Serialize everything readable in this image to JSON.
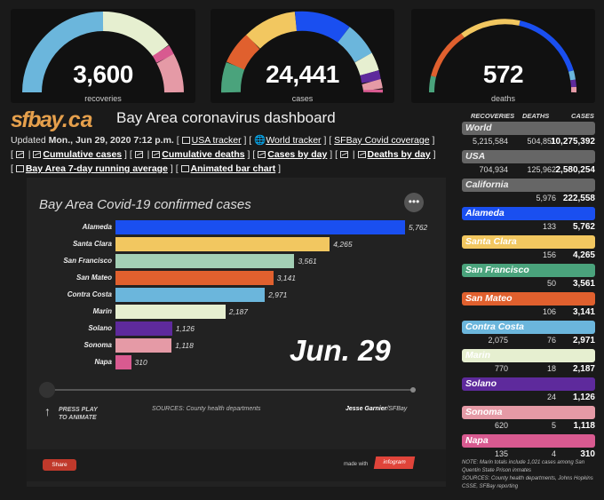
{
  "gauges": [
    {
      "value": "3,600",
      "label": "recoveries"
    },
    {
      "value": "24,441",
      "label": "cases"
    },
    {
      "value": "572",
      "label": "deaths"
    }
  ],
  "header": {
    "logo_main": "sfbay",
    "logo_tld": ".ca",
    "title": "Bay Area coronavirus dashboard"
  },
  "updated": {
    "prefix": "Updated ",
    "date": "Mon., Jun 29, 2020 7:12 p.m.",
    "links": {
      "usa_tracker": "USA tracker",
      "world_tracker": "World tracker",
      "sfbay_coverage": "SFBay Covid coverage",
      "cumulative_cases": "Cumulative cases",
      "cumulative_deaths": "Cumulative deaths",
      "cases_by_day": "Cases by day",
      "deaths_by_day": "Deaths by day",
      "running_average": "Bay Area 7-day running average",
      "animated_bar": "Animated bar chart"
    }
  },
  "chart_panel": {
    "menu_glyph": "•••",
    "date_overlay": "Jun. 29",
    "play_line1": "PRESS PLAY",
    "play_line2": "TO ANIMATE",
    "play_arrow": "↑",
    "sources": "SOURCES: County health departments",
    "byline_name": "Jesse Garnier",
    "byline_org": "/SFBay",
    "share_label": "Share",
    "made_with": "made with",
    "infogram": "infogram"
  },
  "chart_data": {
    "type": "bar",
    "title": "Bay Area Covid-19 confirmed cases",
    "categories": [
      "Alameda",
      "Santa Clara",
      "San Francisco",
      "San Mateo",
      "Contra Costa",
      "Marin",
      "Solano",
      "Sonoma",
      "Napa"
    ],
    "values": [
      5762,
      4265,
      3561,
      3141,
      2971,
      2187,
      1126,
      1118,
      310
    ],
    "value_labels": [
      "5,762",
      "4,265",
      "3,561",
      "3,141",
      "2,971",
      "2,187",
      "1,126",
      "1,118",
      "310"
    ],
    "colors": [
      "#1a4ff0",
      "#f2c760",
      "#a3cfb5",
      "#e0602e",
      "#6bb6dc",
      "#e6efd0",
      "#5e2a9c",
      "#e59aa6",
      "#d85a90"
    ],
    "xlim": [
      0,
      5762
    ],
    "grid": false
  },
  "side_table": {
    "headers": {
      "recoveries": "RECOVERIES",
      "deaths": "DEATHS",
      "cases": "CASES"
    },
    "rows": [
      {
        "name": "World",
        "recoveries": "5,215,584",
        "deaths": "504,851",
        "cases": "10,275,392",
        "bg": "#666666",
        "fg": "#eeeeee"
      },
      {
        "name": "USA",
        "recoveries": "704,934",
        "deaths": "125,962",
        "cases": "2,580,254",
        "bg": "#666666",
        "fg": "#eeeeee"
      },
      {
        "name": "California",
        "recoveries": "",
        "deaths": "5,976",
        "cases": "222,558",
        "bg": "#666666",
        "fg": "#eeeeee"
      },
      {
        "name": "Alameda",
        "recoveries": "",
        "deaths": "133",
        "cases": "5,762",
        "bg": "#1a4ff0",
        "fg": "#ffffff"
      },
      {
        "name": "Santa Clara",
        "recoveries": "",
        "deaths": "156",
        "cases": "4,265",
        "bg": "#f2c760",
        "fg": "#ffffff"
      },
      {
        "name": "San Francisco",
        "recoveries": "",
        "deaths": "50",
        "cases": "3,561",
        "bg": "#4aa37c",
        "fg": "#ffffff"
      },
      {
        "name": "San Mateo",
        "recoveries": "",
        "deaths": "106",
        "cases": "3,141",
        "bg": "#e0602e",
        "fg": "#ffffff"
      },
      {
        "name": "Contra Costa",
        "recoveries": "2,075",
        "deaths": "76",
        "cases": "2,971",
        "bg": "#6bb6dc",
        "fg": "#ffffff"
      },
      {
        "name": "Marin",
        "recoveries": "770",
        "deaths": "18",
        "cases": "2,187",
        "bg": "#e6efd0",
        "fg": "#ffffff"
      },
      {
        "name": "Solano",
        "recoveries": "",
        "deaths": "24",
        "cases": "1,126",
        "bg": "#5e2a9c",
        "fg": "#ffffff"
      },
      {
        "name": "Sonoma",
        "recoveries": "620",
        "deaths": "5",
        "cases": "1,118",
        "bg": "#e59aa6",
        "fg": "#ffffff"
      },
      {
        "name": "Napa",
        "recoveries": "135",
        "deaths": "4",
        "cases": "310",
        "bg": "#d85a90",
        "fg": "#ffffff"
      }
    ],
    "note1": "NOTE: Marin totals include 1,021 cases among San Quentin State Prison inmates",
    "note2": "SOURCES: County health departments, Johns Hopkins CSSE, SFBay reporting"
  }
}
